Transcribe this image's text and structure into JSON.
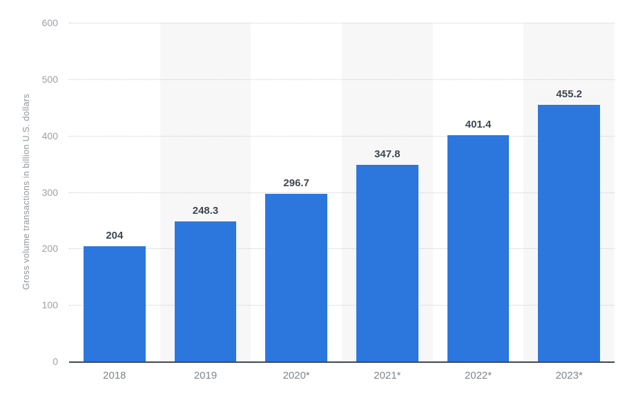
{
  "chart_data": {
    "type": "bar",
    "title": "",
    "xlabel": "",
    "ylabel": "Gross volume transactions in billion U.S. dollars",
    "categories": [
      "2018",
      "2019",
      "2020*",
      "2021*",
      "2022*",
      "2023*"
    ],
    "values": [
      204,
      248.3,
      296.7,
      347.8,
      401.4,
      455.2
    ],
    "value_labels": [
      "204",
      "248.3",
      "296.7",
      "347.8",
      "401.4",
      "455.2"
    ],
    "ylim": [
      0,
      600
    ],
    "yticks": [
      0,
      100,
      200,
      300,
      400,
      500,
      600
    ],
    "grid": "horizontal-dotted",
    "legend": "none",
    "striped_columns": [
      1,
      3,
      5
    ],
    "colors": {
      "bar": "#2b77de",
      "stripe": "#f7f7f7",
      "gridline": "#cccccc",
      "axis_line": "#3e4653",
      "value_label": "#3f4650",
      "x_tick_label": "#7f868e",
      "y_tick_label": "#9aa0a6",
      "y_axis_title": "#8f959b"
    }
  }
}
